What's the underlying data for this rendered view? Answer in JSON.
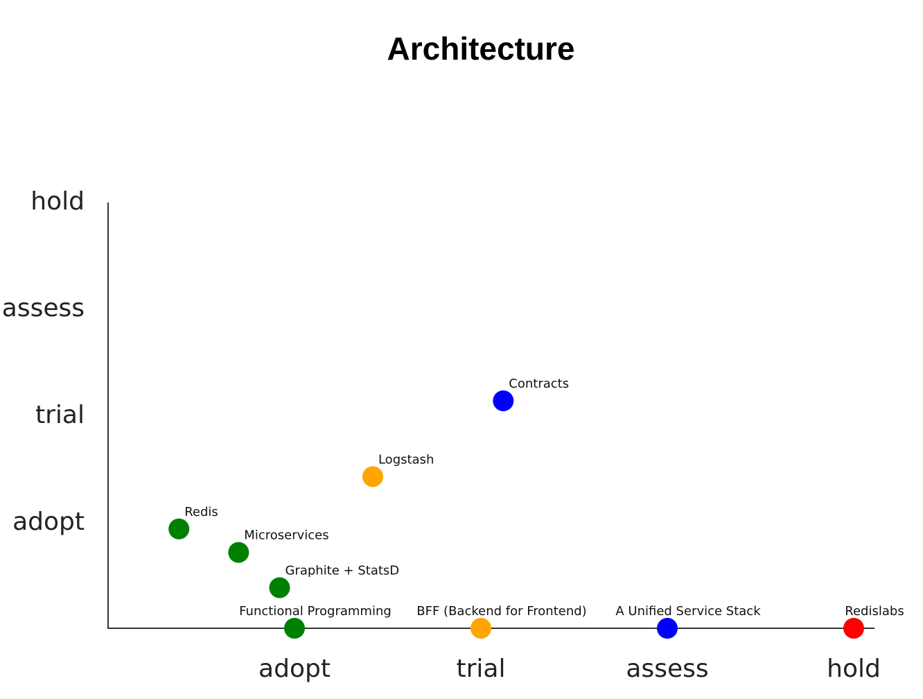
{
  "chart_data": {
    "type": "scatter",
    "title": "Architecture",
    "xlabel": "",
    "ylabel": "",
    "x_ticks": [
      "adopt",
      "trial",
      "assess",
      "hold"
    ],
    "y_ticks": [
      "adopt",
      "trial",
      "assess",
      "hold"
    ],
    "xlim": [
      0,
      4.4
    ],
    "ylim": [
      0,
      4
    ],
    "grid": false,
    "legend": "none",
    "colors": {
      "adopt": "#008000",
      "trial": "#ffa500",
      "assess": "#0000ff",
      "hold": "#ff0000"
    },
    "points": [
      {
        "label": "Redis",
        "x": 0.38,
        "y": 0.93,
        "ring": "adopt"
      },
      {
        "label": "Microservices",
        "x": 0.7,
        "y": 0.71,
        "ring": "adopt"
      },
      {
        "label": "Graphite + StatsD",
        "x": 0.92,
        "y": 0.38,
        "ring": "adopt"
      },
      {
        "label": "Functional Programming",
        "x": 1.0,
        "y": 0.0,
        "ring": "adopt"
      },
      {
        "label": "Logstash",
        "x": 1.42,
        "y": 1.42,
        "ring": "trial"
      },
      {
        "label": "BFF (Backend for Frontend)",
        "x": 2.0,
        "y": 0.0,
        "ring": "trial"
      },
      {
        "label": "Contracts",
        "x": 2.12,
        "y": 2.13,
        "ring": "assess"
      },
      {
        "label": "A Unified Service Stack",
        "x": 3.0,
        "y": 0.0,
        "ring": "assess"
      },
      {
        "label": "Redislabs",
        "x": 4.0,
        "y": 0.0,
        "ring": "hold"
      }
    ]
  }
}
